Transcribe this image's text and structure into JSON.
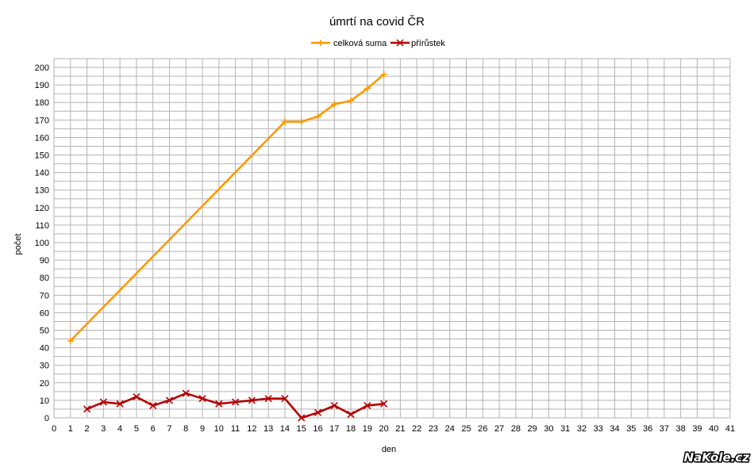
{
  "chart_data": {
    "type": "line",
    "title": "úmrtí na covid ČR",
    "xlabel": "den",
    "ylabel": "počet",
    "xlim": [
      0,
      41
    ],
    "ylim": [
      0,
      205
    ],
    "x_ticks": [
      0,
      1,
      2,
      3,
      4,
      5,
      6,
      7,
      8,
      9,
      10,
      11,
      12,
      13,
      14,
      15,
      16,
      17,
      18,
      19,
      20,
      21,
      22,
      23,
      24,
      25,
      26,
      27,
      28,
      29,
      30,
      31,
      32,
      33,
      34,
      35,
      36,
      37,
      38,
      39,
      40,
      41
    ],
    "y_ticks": [
      0,
      10,
      20,
      30,
      40,
      50,
      60,
      70,
      80,
      90,
      100,
      110,
      120,
      130,
      140,
      150,
      160,
      170,
      180,
      190,
      200
    ],
    "grid": true,
    "legend_position": "top-center",
    "series": [
      {
        "name": "celková suma",
        "color": "#ff9900",
        "marker": "plus",
        "x": [
          1,
          14,
          15,
          16,
          17,
          18,
          19,
          20
        ],
        "values": [
          44,
          169,
          169,
          172,
          179,
          181,
          188,
          196
        ]
      },
      {
        "name": "přírůstek",
        "color": "#b30000",
        "marker": "x",
        "x": [
          2,
          3,
          4,
          5,
          6,
          7,
          8,
          9,
          10,
          11,
          12,
          13,
          14,
          15,
          16,
          17,
          18,
          19,
          20
        ],
        "values": [
          5,
          9,
          8,
          12,
          7,
          10,
          14,
          11,
          8,
          9,
          10,
          11,
          11,
          0,
          3,
          7,
          2,
          7,
          8
        ]
      }
    ]
  },
  "watermark": "NaKole.cz"
}
